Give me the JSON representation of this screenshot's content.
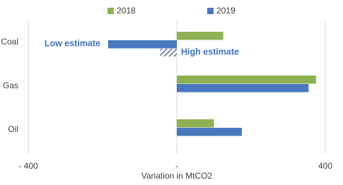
{
  "chart_data": {
    "type": "bar",
    "orientation": "horizontal",
    "categories": [
      "Coal",
      "Gas",
      "Oil"
    ],
    "series": [
      {
        "name": "2018",
        "color": "#8db153",
        "values": [
          125,
          375,
          100
        ]
      },
      {
        "name": "2019",
        "color": "#4a78be",
        "values": [
          -185,
          355,
          175
        ]
      }
    ],
    "xlim": [
      -420,
      420
    ],
    "xticks": [
      {
        "value": -400,
        "label": "- 400"
      },
      {
        "value": 0,
        "label": "-"
      },
      400
    ],
    "xlabel": "Variation in MtCO2",
    "grid": true,
    "annotations": [
      {
        "text": "Low estimate"
      },
      {
        "text": "High estimate",
        "value": -45
      }
    ]
  }
}
